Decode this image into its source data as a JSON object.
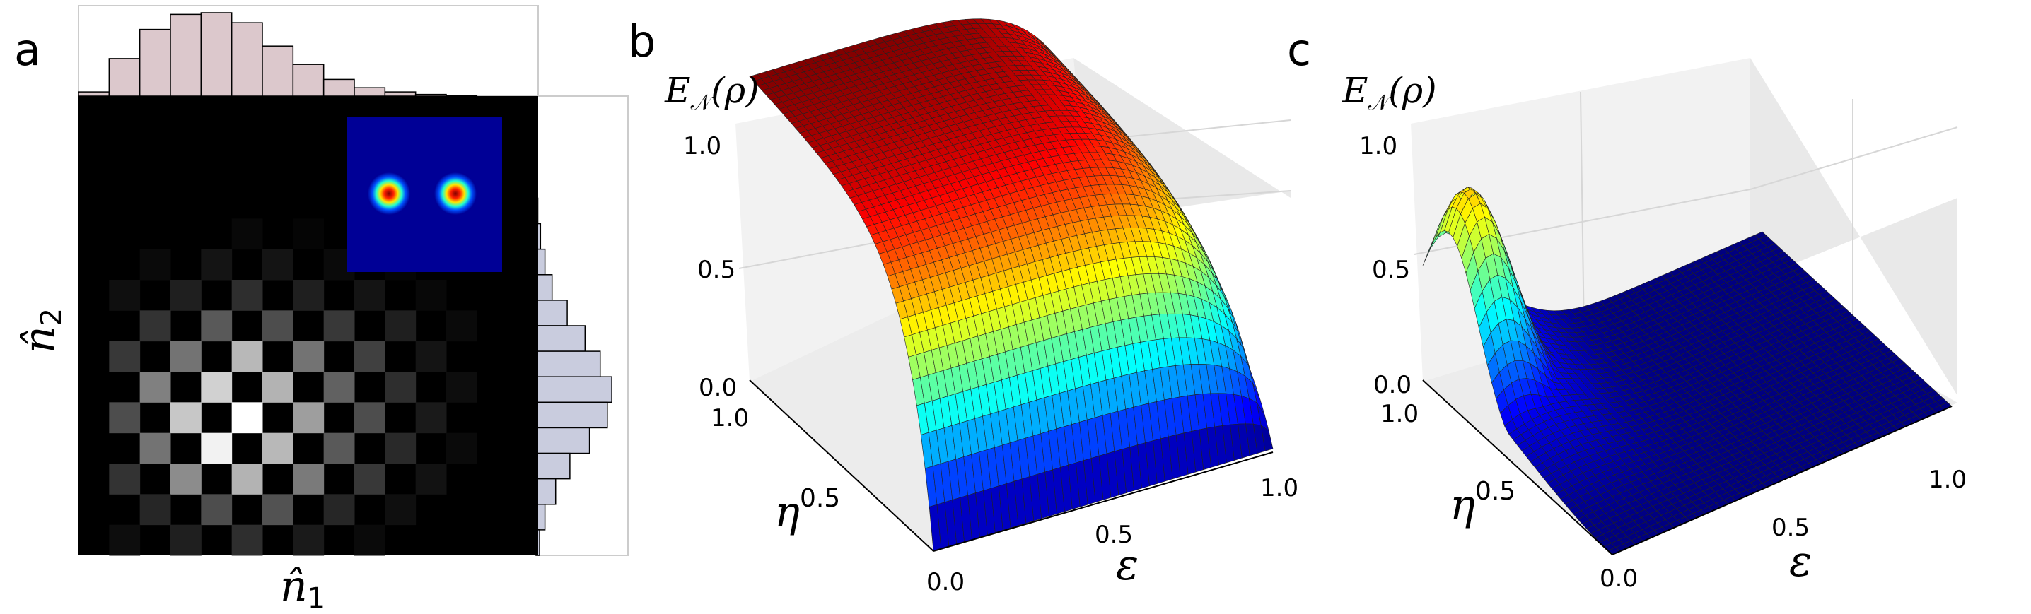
{
  "panels": {
    "a": {
      "label": "a"
    },
    "b": {
      "label": "b"
    },
    "c": {
      "label": "c"
    }
  },
  "chart_data": [
    {
      "panel": "a",
      "type": "heatmap",
      "xlabel": "n̂",
      "xlabel_sub": "1",
      "ylabel": "n̂",
      "ylabel_sub": "2",
      "colormap": "gray",
      "description_free": true,
      "grid_size": [
        15,
        15
      ],
      "values": [
        [
          0,
          0,
          0,
          0,
          0,
          0,
          0,
          0,
          0,
          0,
          0,
          0,
          0,
          0,
          0
        ],
        [
          0,
          0,
          0,
          0,
          0,
          0,
          0,
          0,
          0,
          0,
          0,
          0,
          0,
          0,
          0
        ],
        [
          0,
          0,
          0,
          0,
          0,
          0,
          0,
          0,
          0,
          0,
          0,
          0,
          0,
          0,
          0
        ],
        [
          0,
          0,
          0,
          0,
          0,
          0,
          0,
          0,
          0,
          0,
          0,
          0,
          0,
          0,
          0
        ],
        [
          0,
          0,
          0,
          0,
          0,
          0.03,
          0,
          0.02,
          0,
          0,
          0,
          0,
          0,
          0,
          0
        ],
        [
          0,
          0,
          0.04,
          0,
          0.08,
          0,
          0.08,
          0,
          0.04,
          0,
          0.02,
          0,
          0,
          0,
          0
        ],
        [
          0,
          0.06,
          0,
          0.12,
          0,
          0.18,
          0,
          0.12,
          0,
          0.08,
          0,
          0.03,
          0,
          0,
          0
        ],
        [
          0,
          0,
          0.2,
          0,
          0.35,
          0,
          0.3,
          0,
          0.22,
          0,
          0.12,
          0,
          0.04,
          0,
          0
        ],
        [
          0,
          0.22,
          0,
          0.45,
          0,
          0.72,
          0,
          0.45,
          0,
          0.25,
          0,
          0.08,
          0,
          0,
          0
        ],
        [
          0,
          0,
          0.5,
          0,
          0.82,
          0,
          0.7,
          0,
          0.38,
          0,
          0.18,
          0,
          0.05,
          0,
          0
        ],
        [
          0,
          0.3,
          0,
          0.78,
          0,
          1.0,
          0,
          0.62,
          0,
          0.3,
          0,
          0.1,
          0,
          0,
          0
        ],
        [
          0,
          0,
          0.45,
          0,
          0.95,
          0,
          0.72,
          0,
          0.35,
          0,
          0.16,
          0,
          0.04,
          0,
          0
        ],
        [
          0,
          0.2,
          0,
          0.55,
          0,
          0.7,
          0,
          0.48,
          0,
          0.22,
          0,
          0.07,
          0,
          0,
          0
        ],
        [
          0,
          0,
          0.15,
          0,
          0.3,
          0,
          0.32,
          0,
          0.15,
          0,
          0.06,
          0,
          0,
          0,
          0
        ],
        [
          0,
          0.05,
          0,
          0.12,
          0,
          0.18,
          0,
          0.1,
          0,
          0.04,
          0,
          0,
          0,
          0,
          0
        ]
      ],
      "marginal_top": {
        "color": "#dcc8cc",
        "values": [
          0.05,
          0.45,
          0.8,
          0.98,
          1.0,
          0.88,
          0.6,
          0.38,
          0.2,
          0.1,
          0.05,
          0.02,
          0.01,
          0,
          0
        ]
      },
      "marginal_right": {
        "color": "#c9ccde",
        "values": [
          0,
          0,
          0,
          0,
          0.02,
          0.05,
          0.1,
          0.18,
          0.35,
          0.55,
          0.72,
          0.85,
          0.8,
          0.6,
          0.38,
          0.22,
          0.1,
          0.04
        ]
      },
      "inset": {
        "background": "#000080",
        "blobs": 2
      }
    },
    {
      "panel": "b",
      "type": "surface",
      "zlabel": "E",
      "zlabel_sub": "𝒩",
      "zlabel_arg": "(ρ)",
      "xlabel": "ε",
      "ylabel": "η",
      "ylabel_sup": "0.5",
      "x_ticks": [
        "0.0",
        "0.5",
        "1.0"
      ],
      "y_ticks": [
        "1.0",
        "0.5"
      ],
      "z_ticks": [
        "0.0",
        "0.5",
        "1.0"
      ],
      "xlim": [
        0,
        1
      ],
      "ylim": [
        0,
        1
      ],
      "zlim": [
        0,
        1
      ],
      "colormap": "jet",
      "grid": true
    },
    {
      "panel": "c",
      "type": "surface",
      "zlabel": "E",
      "zlabel_sub": "𝒩",
      "zlabel_arg": "(ρ)",
      "xlabel": "ε",
      "ylabel": "η",
      "ylabel_sup": "0.5",
      "x_ticks": [
        "0.0",
        "0.5",
        "1.0"
      ],
      "y_ticks": [
        "1.0",
        "0.5"
      ],
      "z_ticks": [
        "0.0",
        "0.5",
        "1.0"
      ],
      "xlim": [
        0,
        1
      ],
      "ylim": [
        0,
        1
      ],
      "zlim": [
        0,
        1
      ],
      "colormap": "jet",
      "grid": true
    }
  ]
}
